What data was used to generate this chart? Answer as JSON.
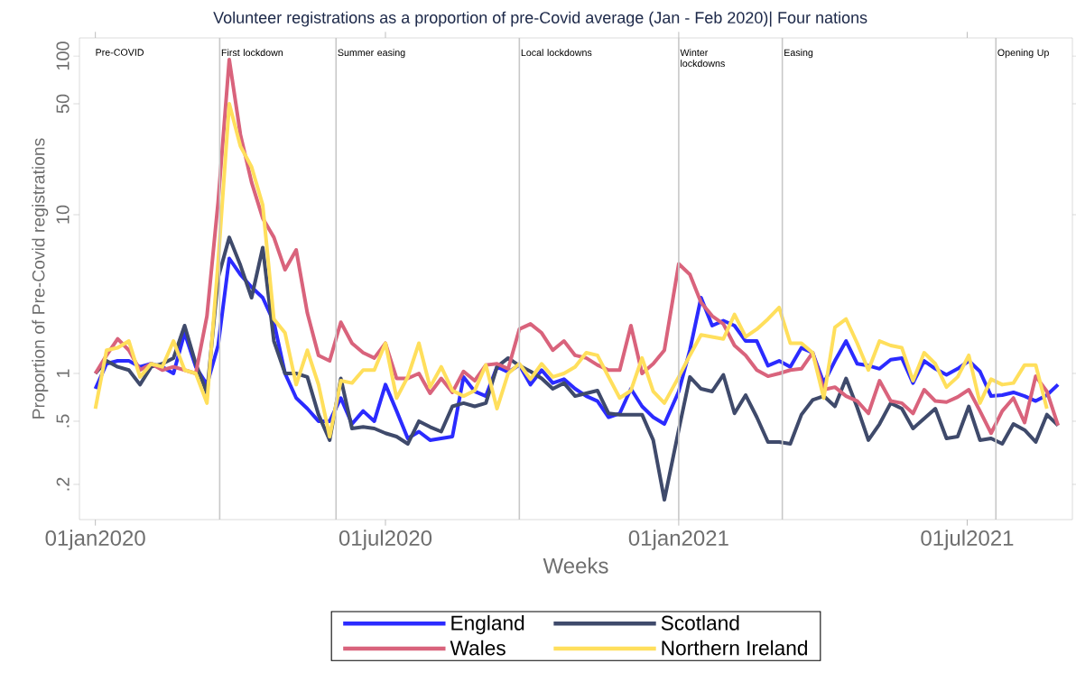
{
  "chart_data": {
    "type": "line",
    "title": "Volunteer registrations as a proportion of pre-Covid average (Jan - Feb 2020)| Four nations",
    "xlabel": "Weeks",
    "ylabel": "Proportion of Pre-Covid registrations",
    "log": "y",
    "legend": "bottom",
    "xlim": [
      "2019-12-22",
      "2021-09-05"
    ],
    "ylim": [
      0.12,
      130
    ],
    "xticks": [
      {
        "value": "2020-01-01",
        "label": "01jan2020"
      },
      {
        "value": "2020-07-01",
        "label": "01jul2020"
      },
      {
        "value": "2021-01-01",
        "label": "01jan2021"
      },
      {
        "value": "2021-07-01",
        "label": "01jul2021"
      }
    ],
    "yticks": [
      {
        "value": 0.2,
        "label": ".2"
      },
      {
        "value": 0.5,
        "label": ".5"
      },
      1,
      10,
      50,
      100
    ],
    "annotations": [
      "Pre-COVID"
    ],
    "ref_lines": [
      {
        "axis": "x",
        "value": "2020-03-19",
        "label": "First lockdown",
        "color": "#c8c8c8"
      },
      {
        "axis": "x",
        "value": "2020-05-31",
        "label": "Summer easing",
        "color": "#c8c8c8"
      },
      {
        "axis": "x",
        "value": "2020-09-23",
        "label": "Local lockdowns",
        "color": "#c8c8c8"
      },
      {
        "axis": "x",
        "value": "2021-01-01",
        "label": "Winter lockdowns",
        "color": "#c8c8c8"
      },
      {
        "axis": "x",
        "value": "2021-03-07",
        "label": "Easing",
        "color": "#c8c8c8"
      },
      {
        "axis": "x",
        "value": "2021-07-19",
        "label": "Opening Up",
        "color": "#c8c8c8"
      }
    ],
    "x": [
      "2020-01-01",
      "2020-01-08",
      "2020-01-15",
      "2020-01-22",
      "2020-01-29",
      "2020-02-05",
      "2020-02-12",
      "2020-02-19",
      "2020-02-26",
      "2020-03-04",
      "2020-03-11",
      "2020-03-18",
      "2020-03-25",
      "2020-04-01",
      "2020-04-08",
      "2020-04-15",
      "2020-04-22",
      "2020-04-29",
      "2020-05-06",
      "2020-05-13",
      "2020-05-20",
      "2020-05-27",
      "2020-06-03",
      "2020-06-10",
      "2020-06-17",
      "2020-06-24",
      "2020-07-01",
      "2020-07-08",
      "2020-07-15",
      "2020-07-22",
      "2020-07-29",
      "2020-08-05",
      "2020-08-12",
      "2020-08-19",
      "2020-08-26",
      "2020-09-02",
      "2020-09-09",
      "2020-09-16",
      "2020-09-23",
      "2020-09-30",
      "2020-10-07",
      "2020-10-14",
      "2020-10-21",
      "2020-10-28",
      "2020-11-04",
      "2020-11-11",
      "2020-11-18",
      "2020-11-25",
      "2020-12-02",
      "2020-12-09",
      "2020-12-16",
      "2020-12-23",
      "2021-01-01",
      "2021-01-08",
      "2021-01-15",
      "2021-01-22",
      "2021-01-29",
      "2021-02-05",
      "2021-02-12",
      "2021-02-19",
      "2021-02-26",
      "2021-03-05",
      "2021-03-12",
      "2021-03-19",
      "2021-03-26",
      "2021-04-02",
      "2021-04-09",
      "2021-04-16",
      "2021-04-23",
      "2021-04-30",
      "2021-05-07",
      "2021-05-14",
      "2021-05-21",
      "2021-05-28",
      "2021-06-04",
      "2021-06-11",
      "2021-06-18",
      "2021-06-25",
      "2021-07-02",
      "2021-07-09",
      "2021-07-16",
      "2021-07-23",
      "2021-07-30",
      "2021-08-06",
      "2021-08-13",
      "2021-08-20",
      "2021-08-27"
    ],
    "series": [
      {
        "name": "England",
        "color": "#2b2bff",
        "values": [
          0.8,
          1.15,
          1.2,
          1.2,
          1.1,
          1.15,
          1.1,
          1.0,
          1.8,
          1.1,
          0.85,
          1.5,
          5.3,
          4.2,
          3.5,
          3.0,
          2.1,
          1.0,
          0.7,
          0.6,
          0.5,
          0.5,
          0.7,
          0.48,
          0.58,
          0.5,
          0.85,
          0.58,
          0.39,
          0.43,
          0.38,
          0.39,
          0.4,
          0.95,
          0.77,
          0.72,
          1.1,
          1.02,
          1.13,
          0.85,
          1.05,
          0.87,
          0.92,
          0.8,
          0.72,
          0.67,
          0.53,
          0.56,
          0.8,
          0.62,
          0.53,
          0.48,
          0.77,
          1.4,
          3.0,
          2.0,
          2.15,
          2.0,
          1.6,
          1.6,
          1.12,
          1.2,
          1.1,
          1.45,
          1.35,
          0.87,
          1.2,
          1.6,
          1.15,
          1.12,
          1.07,
          1.22,
          1.25,
          0.87,
          1.2,
          1.07,
          0.98,
          1.07,
          1.2,
          1.03,
          0.72,
          0.73,
          0.76,
          0.72,
          0.67,
          0.73,
          0.85
        ]
      },
      {
        "name": "Scotland",
        "color": "#3f4a6b",
        "values": [
          1.0,
          1.2,
          1.1,
          1.05,
          0.85,
          1.1,
          1.15,
          1.25,
          2.0,
          1.15,
          0.75,
          4.0,
          7.2,
          4.8,
          3.0,
          6.2,
          1.6,
          1.0,
          1.0,
          0.95,
          0.55,
          0.38,
          0.93,
          0.45,
          0.46,
          0.45,
          0.42,
          0.4,
          0.36,
          0.5,
          0.46,
          0.43,
          0.62,
          0.65,
          0.62,
          0.65,
          1.1,
          1.25,
          1.12,
          1.03,
          0.93,
          0.8,
          0.87,
          0.72,
          0.75,
          0.78,
          0.56,
          0.55,
          0.55,
          0.55,
          0.38,
          0.16,
          0.44,
          0.95,
          0.8,
          0.77,
          0.98,
          0.56,
          0.73,
          0.53,
          0.37,
          0.37,
          0.36,
          0.55,
          0.68,
          0.72,
          0.62,
          0.93,
          0.61,
          0.38,
          0.48,
          0.65,
          0.6,
          0.45,
          0.52,
          0.6,
          0.39,
          0.4,
          0.62,
          0.38,
          0.39,
          0.36,
          0.48,
          0.44,
          0.37,
          0.55,
          0.47
        ]
      },
      {
        "name": "Wales",
        "color": "#d9637c",
        "values": [
          1.0,
          1.3,
          1.65,
          1.4,
          1.05,
          1.15,
          1.05,
          1.1,
          1.05,
          1.0,
          2.3,
          12,
          95,
          32,
          16,
          9.5,
          7.2,
          4.5,
          6,
          2.4,
          1.3,
          1.2,
          2.1,
          1.55,
          1.35,
          1.25,
          1.55,
          0.93,
          0.93,
          1.0,
          0.75,
          0.93,
          0.76,
          1.03,
          0.9,
          1.13,
          1.15,
          1.07,
          1.9,
          2.05,
          1.8,
          1.4,
          1.6,
          1.3,
          1.25,
          1.13,
          1.05,
          1.05,
          2.0,
          1.0,
          1.15,
          1.4,
          4.9,
          4.2,
          2.8,
          2.3,
          2.05,
          1.5,
          1.3,
          1.05,
          0.96,
          1.0,
          1.05,
          1.07,
          1.35,
          0.79,
          0.82,
          0.72,
          0.67,
          0.56,
          0.9,
          0.67,
          0.65,
          0.56,
          0.79,
          0.67,
          0.66,
          0.71,
          0.79,
          0.58,
          0.42,
          0.58,
          0.7,
          0.49,
          0.96,
          0.77,
          0.47
        ]
      },
      {
        "name": "Northern Ireland",
        "color": "#ffdf5c",
        "values": [
          0.6,
          1.4,
          1.45,
          1.6,
          0.95,
          1.15,
          1.1,
          1.6,
          1.05,
          1.0,
          0.65,
          5,
          50,
          27,
          20,
          11.5,
          2.2,
          1.8,
          0.85,
          1.4,
          0.85,
          0.4,
          0.9,
          0.87,
          1.05,
          1.05,
          1.55,
          0.7,
          0.95,
          1.55,
          0.82,
          1.1,
          0.78,
          0.72,
          0.78,
          1.13,
          0.6,
          1.0,
          1.15,
          0.92,
          1.15,
          0.95,
          1.0,
          1.1,
          1.35,
          1.3,
          0.95,
          0.7,
          0.78,
          1.25,
          0.77,
          0.65,
          0.95,
          1.3,
          1.75,
          1.7,
          1.65,
          2.35,
          1.7,
          1.9,
          2.2,
          2.6,
          1.55,
          1.55,
          1.35,
          0.7,
          1.95,
          2.2,
          1.55,
          1.05,
          1.6,
          1.5,
          1.45,
          0.9,
          1.35,
          1.15,
          0.82,
          0.95,
          1.3,
          0.65,
          0.92,
          0.85,
          0.87,
          1.13,
          1.13,
          0.6,
          null
        ]
      }
    ]
  }
}
